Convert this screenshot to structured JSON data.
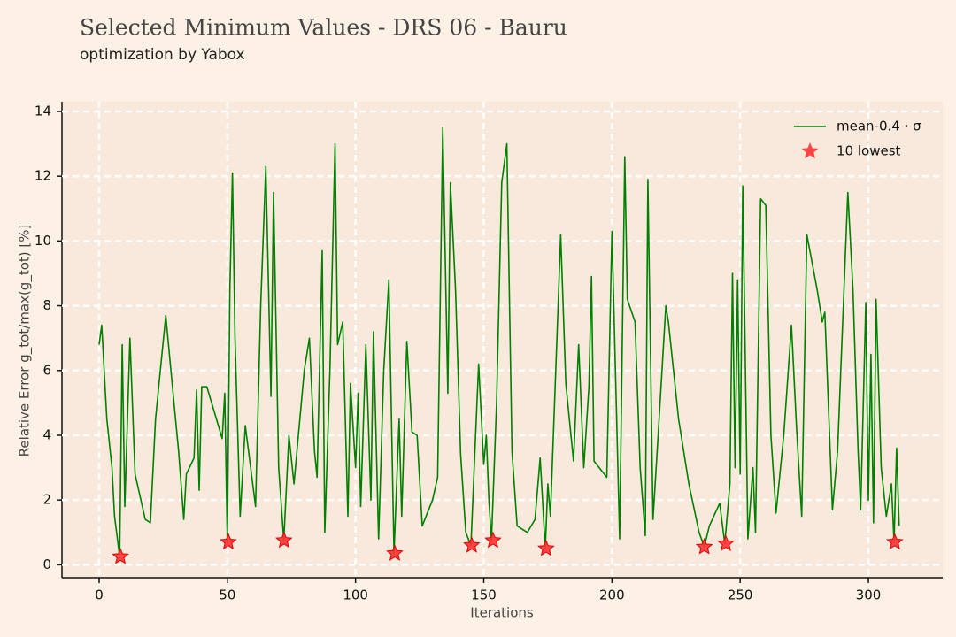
{
  "chart_data": {
    "type": "line",
    "title": "Selected Minimum Values - DRS 06 - Bauru",
    "subtitle": "optimization by Yabox",
    "x_label": "Iterations",
    "y_label": "Relative Error g_tot/max(g_tot) [%]",
    "xlim": [
      -14.5,
      329
    ],
    "ylim": [
      -0.4,
      14.3
    ],
    "xticks": [
      0,
      50,
      100,
      150,
      200,
      250,
      300
    ],
    "yticks": [
      0,
      2,
      4,
      6,
      8,
      10,
      12,
      14
    ],
    "grid": true,
    "legend": "upper right",
    "series": [
      {
        "name": "mean-0.4 · σ",
        "color": "#008000",
        "x": [
          0,
          1,
          3,
          5,
          6,
          8,
          9,
          10,
          12,
          14,
          18,
          20,
          22,
          26,
          28,
          31,
          33,
          34,
          37,
          38,
          39,
          40,
          42,
          48,
          49,
          50,
          51,
          52,
          53,
          55,
          57,
          61,
          63,
          65,
          67,
          68,
          70,
          72,
          74,
          76,
          80,
          82,
          84,
          85,
          87,
          88,
          90,
          92,
          93,
          95,
          97,
          98,
          100,
          101,
          102,
          104,
          106,
          107,
          109,
          111,
          113,
          115,
          117,
          118,
          120,
          122,
          124,
          126,
          130,
          132,
          134,
          136,
          137,
          139,
          141,
          143,
          145,
          148,
          150,
          151,
          152,
          153,
          155,
          157,
          159,
          161,
          163,
          167,
          170,
          172,
          174,
          175,
          176,
          179,
          180,
          182,
          185,
          187,
          189,
          191,
          192,
          193,
          198,
          200,
          202,
          203,
          205,
          206,
          209,
          211,
          213,
          214,
          216,
          218,
          221,
          222,
          226,
          230,
          234,
          236,
          238,
          242,
          244,
          246,
          247,
          248,
          249,
          250,
          251,
          253,
          255,
          256,
          258,
          260,
          262,
          264,
          267,
          270,
          272,
          274,
          276,
          280,
          282,
          283,
          286,
          288,
          292,
          294,
          296,
          297,
          299,
          300,
          301,
          302,
          303,
          305,
          307,
          309,
          310,
          311,
          312
        ],
        "values": [
          6.8,
          7.4,
          4.5,
          3.0,
          1.5,
          0.25,
          6.8,
          1.8,
          7.0,
          2.8,
          1.4,
          1.3,
          4.5,
          7.7,
          6.0,
          3.5,
          1.4,
          2.8,
          3.3,
          5.4,
          2.3,
          5.5,
          5.5,
          3.9,
          5.3,
          0.7,
          8.5,
          12.1,
          7.0,
          1.5,
          4.3,
          1.8,
          8.0,
          12.3,
          5.2,
          11.5,
          3.0,
          0.75,
          4.0,
          2.5,
          6.0,
          7.0,
          3.5,
          2.7,
          9.7,
          1.0,
          6.0,
          13.0,
          6.8,
          7.5,
          1.5,
          5.6,
          3.0,
          5.3,
          1.8,
          6.8,
          2.0,
          7.2,
          0.8,
          6.0,
          8.8,
          0.35,
          4.5,
          1.5,
          6.9,
          4.1,
          4.0,
          1.2,
          2.0,
          2.7,
          13.5,
          5.3,
          11.8,
          8.5,
          3.4,
          1.0,
          0.6,
          6.2,
          3.1,
          4.0,
          2.0,
          0.75,
          5.0,
          11.8,
          13.0,
          3.5,
          1.2,
          1.0,
          1.4,
          3.3,
          0.5,
          2.5,
          1.5,
          8.0,
          10.2,
          5.6,
          3.2,
          6.8,
          3.0,
          5.5,
          8.9,
          3.2,
          2.7,
          10.3,
          4.0,
          0.8,
          12.6,
          8.2,
          7.5,
          3.0,
          0.9,
          11.9,
          1.4,
          4.0,
          8.0,
          7.5,
          4.5,
          2.5,
          1.0,
          0.55,
          1.2,
          1.9,
          0.65,
          2.5,
          9.0,
          3.0,
          8.8,
          2.8,
          11.7,
          0.8,
          3.0,
          1.0,
          11.3,
          11.1,
          4.0,
          1.6,
          4.0,
          7.4,
          4.2,
          1.5,
          10.2,
          8.5,
          7.5,
          7.8,
          1.7,
          3.5,
          11.5,
          8.5,
          3.5,
          1.7,
          8.1,
          2.0,
          6.5,
          1.3,
          8.2,
          3.0,
          1.5,
          2.5,
          0.7,
          3.6,
          1.2
        ]
      },
      {
        "name": "10 lowest",
        "color": "#ff3333",
        "marker": "star",
        "x": [
          8.3,
          50.4,
          72.1,
          115.3,
          145.3,
          153.6,
          174.3,
          236,
          244.4,
          310.3
        ],
        "values": [
          0.25,
          0.7,
          0.75,
          0.35,
          0.6,
          0.75,
          0.5,
          0.55,
          0.65,
          0.7
        ]
      }
    ]
  }
}
